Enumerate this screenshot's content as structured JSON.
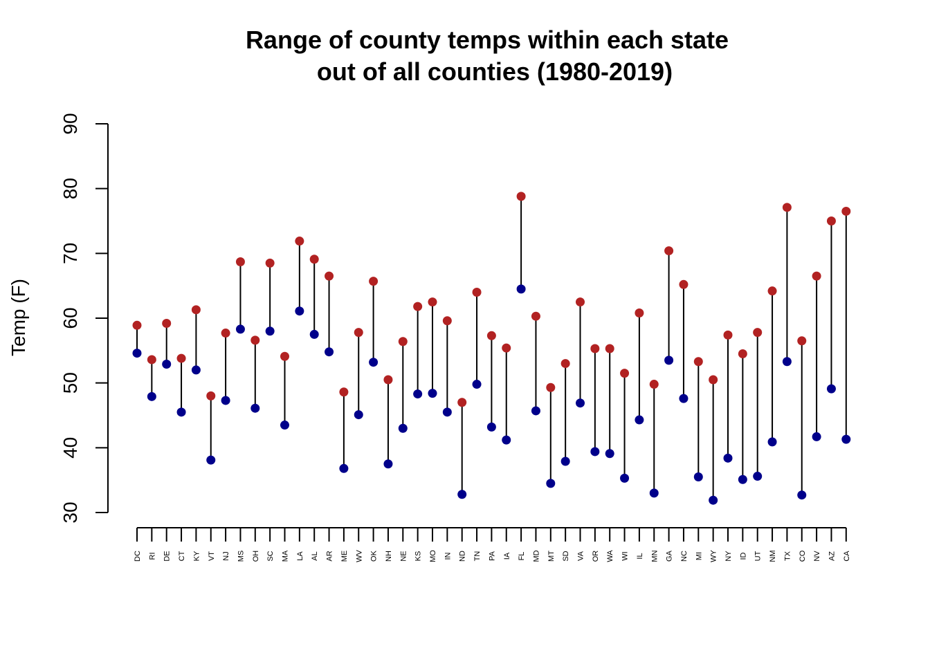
{
  "chart_data": {
    "type": "dumbbell",
    "title_line1": "Range of county temps within each state",
    "title_line2": "out of all counties (1980-2019)",
    "xlabel": "",
    "ylabel": "Temp (F)",
    "ylim": [
      30,
      90
    ],
    "yticks": [
      "30",
      "40",
      "50",
      "60",
      "70",
      "80",
      "90"
    ],
    "grid": false,
    "low_color": "#00008B",
    "high_color": "#B22222",
    "segment_color": "#000000",
    "categories": [
      "DC",
      "RI",
      "DE",
      "CT",
      "KY",
      "VT",
      "NJ",
      "MS",
      "OH",
      "SC",
      "MA",
      "LA",
      "AL",
      "AR",
      "ME",
      "WV",
      "OK",
      "NH",
      "NE",
      "KS",
      "MO",
      "IN",
      "ND",
      "TN",
      "PA",
      "IA",
      "FL",
      "MD",
      "MT",
      "SD",
      "VA",
      "OR",
      "WA",
      "WI",
      "IL",
      "MN",
      "GA",
      "NC",
      "MI",
      "WY",
      "NY",
      "ID",
      "UT",
      "NM",
      "TX",
      "CO",
      "NV",
      "AZ",
      "CA"
    ],
    "low": [
      54.6,
      47.9,
      52.9,
      45.5,
      52.0,
      38.1,
      47.3,
      58.3,
      46.1,
      58.0,
      43.5,
      61.1,
      57.5,
      54.8,
      36.8,
      45.1,
      53.2,
      37.5,
      43.0,
      48.3,
      48.4,
      45.5,
      32.8,
      49.8,
      43.2,
      41.2,
      64.5,
      45.7,
      34.5,
      37.9,
      46.9,
      39.4,
      39.1,
      35.3,
      44.3,
      33.0,
      53.5,
      47.6,
      35.5,
      31.9,
      38.4,
      35.1,
      35.6,
      40.9,
      53.3,
      32.7,
      41.7,
      49.1,
      41.3
    ],
    "high": [
      58.9,
      53.6,
      59.2,
      53.8,
      61.3,
      48.0,
      57.7,
      68.7,
      56.6,
      68.5,
      54.1,
      71.9,
      69.1,
      66.5,
      48.6,
      57.8,
      65.7,
      50.5,
      56.4,
      61.8,
      62.5,
      59.6,
      47.0,
      64.0,
      57.3,
      55.4,
      78.8,
      60.3,
      49.3,
      53.0,
      62.5,
      55.3,
      55.3,
      51.5,
      60.8,
      49.8,
      70.4,
      65.2,
      53.3,
      50.5,
      57.4,
      54.5,
      57.8,
      64.2,
      77.1,
      56.5,
      66.5,
      75.0,
      76.5
    ]
  }
}
